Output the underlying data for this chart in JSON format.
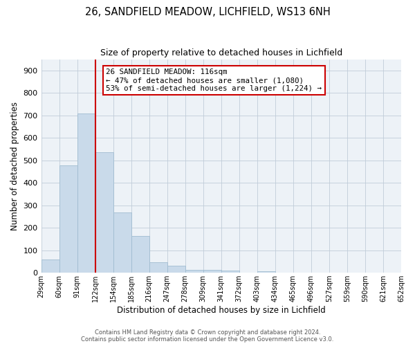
{
  "title": "26, SANDFIELD MEADOW, LICHFIELD, WS13 6NH",
  "subtitle": "Size of property relative to detached houses in Lichfield",
  "xlabel": "Distribution of detached houses by size in Lichfield",
  "ylabel": "Number of detached properties",
  "bar_color": "#c9daea",
  "bar_edge_color": "#a0bcd0",
  "background_color": "#edf2f7",
  "grid_color": "#c0ccd8",
  "bin_labels": [
    "29sqm",
    "60sqm",
    "91sqm",
    "122sqm",
    "154sqm",
    "185sqm",
    "216sqm",
    "247sqm",
    "278sqm",
    "309sqm",
    "341sqm",
    "372sqm",
    "403sqm",
    "434sqm",
    "465sqm",
    "496sqm",
    "527sqm",
    "559sqm",
    "590sqm",
    "621sqm",
    "652sqm"
  ],
  "counts": [
    60,
    477,
    710,
    537,
    268,
    163,
    46,
    32,
    14,
    14,
    10,
    0,
    7,
    0,
    0,
    0,
    0,
    0,
    0,
    0
  ],
  "ylim": [
    0,
    950
  ],
  "yticks": [
    0,
    100,
    200,
    300,
    400,
    500,
    600,
    700,
    800,
    900
  ],
  "property_line_x": 3.0,
  "annotation_text_line1": "26 SANDFIELD MEADOW: 116sqm",
  "annotation_text_line2": "← 47% of detached houses are smaller (1,080)",
  "annotation_text_line3": "53% of semi-detached houses are larger (1,224) →",
  "annotation_box_color": "#ffffff",
  "annotation_box_edge": "#cc0000",
  "line_color": "#cc0000",
  "footer_line1": "Contains HM Land Registry data © Crown copyright and database right 2024.",
  "footer_line2": "Contains public sector information licensed under the Open Government Licence v3.0."
}
